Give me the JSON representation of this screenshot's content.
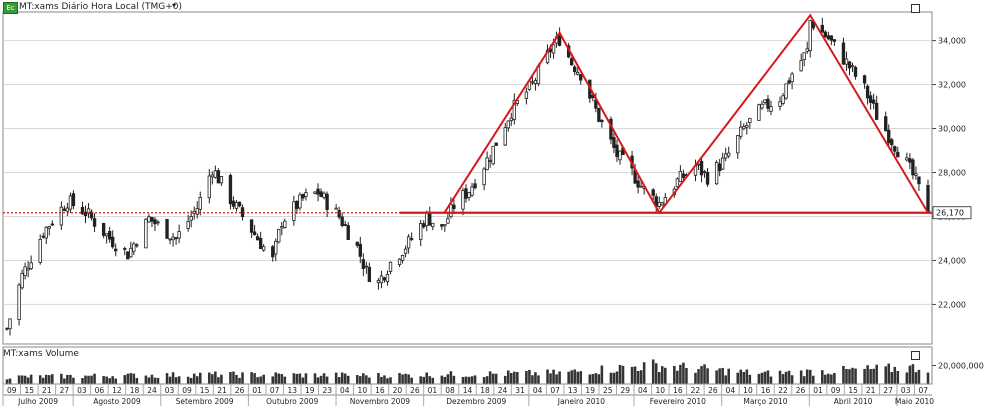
{
  "header": {
    "badge": "Ec",
    "title": "MT:xams Diário Hora Local (TMG+0)",
    "dropdown_icon": "chevron-down-icon",
    "volume_title": "MT:xams Volume"
  },
  "colors": {
    "up_candle": "#ffffff",
    "down_candle": "#222222",
    "pattern_lines": "#d41a1a",
    "neckline": "#d41a1a",
    "volume_bar": "#333333",
    "grid": "#d8d8d8"
  },
  "chart_data": [
    {
      "type": "candlestick",
      "title": "MT:xams Diário Hora Local (TMG+0)",
      "ylim": [
        20200,
        35300
      ],
      "y_ticks": [
        "22,000",
        "24,000",
        "26,000",
        "28,000",
        "30,000",
        "32,000",
        "34,000"
      ],
      "y_tick_values": [
        22000,
        24000,
        26000,
        28000,
        30000,
        32000,
        34000
      ],
      "last_price_label": "26,170",
      "last_price": 26170,
      "x_period": [
        "2009-07-09",
        "2010-05-10"
      ],
      "close_path": [
        {
          "date": "2009-07-09",
          "close": 20900
        },
        {
          "date": "2009-07-14",
          "close": 23300
        },
        {
          "date": "2009-07-21",
          "close": 25300
        },
        {
          "date": "2009-07-29",
          "close": 26700
        },
        {
          "date": "2009-08-04",
          "close": 26200
        },
        {
          "date": "2009-08-12",
          "close": 25000
        },
        {
          "date": "2009-08-18",
          "close": 24300
        },
        {
          "date": "2009-08-25",
          "close": 25900
        },
        {
          "date": "2009-09-03",
          "close": 25000
        },
        {
          "date": "2009-09-10",
          "close": 26400
        },
        {
          "date": "2009-09-15",
          "close": 28200
        },
        {
          "date": "2009-09-21",
          "close": 26800
        },
        {
          "date": "2009-09-25",
          "close": 26000
        },
        {
          "date": "2009-10-01",
          "close": 24800
        },
        {
          "date": "2009-10-05",
          "close": 24000
        },
        {
          "date": "2009-10-08",
          "close": 25800
        },
        {
          "date": "2009-10-15",
          "close": 26800
        },
        {
          "date": "2009-10-20",
          "close": 27100
        },
        {
          "date": "2009-10-27",
          "close": 26000
        },
        {
          "date": "2009-11-02",
          "close": 24600
        },
        {
          "date": "2009-11-05",
          "close": 23500
        },
        {
          "date": "2009-11-09",
          "close": 23000
        },
        {
          "date": "2009-11-13",
          "close": 23900
        },
        {
          "date": "2009-11-19",
          "close": 24800
        },
        {
          "date": "2009-11-25",
          "close": 26000
        },
        {
          "date": "2009-11-30",
          "close": 25400
        },
        {
          "date": "2009-12-04",
          "close": 26500
        },
        {
          "date": "2009-12-09",
          "close": 27200
        },
        {
          "date": "2009-12-16",
          "close": 28800
        },
        {
          "date": "2009-12-23",
          "close": 30800
        },
        {
          "date": "2009-12-30",
          "close": 32000
        },
        {
          "date": "2010-01-05",
          "close": 33600
        },
        {
          "date": "2010-01-08",
          "close": 34100
        },
        {
          "date": "2010-01-12",
          "close": 33000
        },
        {
          "date": "2010-01-15",
          "close": 32500
        },
        {
          "date": "2010-01-21",
          "close": 30500
        },
        {
          "date": "2010-01-27",
          "close": 28800
        },
        {
          "date": "2010-02-01",
          "close": 28000
        },
        {
          "date": "2010-02-05",
          "close": 27200
        },
        {
          "date": "2010-02-10",
          "close": 26600
        },
        {
          "date": "2010-02-16",
          "close": 27600
        },
        {
          "date": "2010-02-22",
          "close": 28300
        },
        {
          "date": "2010-02-26",
          "close": 27800
        },
        {
          "date": "2010-03-04",
          "close": 28600
        },
        {
          "date": "2010-03-10",
          "close": 30000
        },
        {
          "date": "2010-03-16",
          "close": 30900
        },
        {
          "date": "2010-03-22",
          "close": 31400
        },
        {
          "date": "2010-03-26",
          "close": 32500
        },
        {
          "date": "2010-03-31",
          "close": 33500
        },
        {
          "date": "2010-04-01",
          "close": 34900
        },
        {
          "date": "2010-04-07",
          "close": 34100
        },
        {
          "date": "2010-04-13",
          "close": 33000
        },
        {
          "date": "2010-04-19",
          "close": 31800
        },
        {
          "date": "2010-04-23",
          "close": 30600
        },
        {
          "date": "2010-04-27",
          "close": 29700
        },
        {
          "date": "2010-05-03",
          "close": 28400
        },
        {
          "date": "2010-05-06",
          "close": 27600
        },
        {
          "date": "2010-05-10",
          "close": 26170
        }
      ]
    },
    {
      "type": "bar",
      "title": "MT:xams Volume",
      "y_ticks": [
        "20,000,000"
      ],
      "y_tick_values": [
        20000000
      ],
      "ylim": [
        0,
        26000000
      ],
      "level": [
        {
          "date": "2009-07-09",
          "volume": 9000000
        },
        {
          "date": "2009-09-15",
          "volume": 12000000
        },
        {
          "date": "2009-11-09",
          "volume": 11000000
        },
        {
          "date": "2010-01-08",
          "volume": 14000000
        },
        {
          "date": "2010-02-08",
          "volume": 24000000
        },
        {
          "date": "2010-03-16",
          "volume": 13000000
        },
        {
          "date": "2010-05-07",
          "volume": 21000000
        }
      ]
    }
  ],
  "annotations": {
    "neckline_value": 26170,
    "pattern": [
      {
        "date": "2009-12-01",
        "value": 26200
      },
      {
        "date": "2010-01-08",
        "value": 34350
      },
      {
        "date": "2010-02-10",
        "value": 26170
      },
      {
        "date": "2010-04-01",
        "value": 35150
      },
      {
        "date": "2010-05-10",
        "value": 26170
      }
    ]
  },
  "x_axis": {
    "day_labels": [
      "09",
      "15",
      "21",
      "27",
      "03",
      "06",
      "12",
      "18",
      "24",
      "03",
      "09",
      "15",
      "21",
      "26",
      "01",
      "07",
      "13",
      "19",
      "23",
      "04",
      "10",
      "16",
      "20",
      "26",
      "01",
      "08",
      "14",
      "18",
      "24",
      "31",
      "04",
      "07",
      "13",
      "19",
      "25",
      "29",
      "04",
      "10",
      "16",
      "22",
      "26",
      "04",
      "10",
      "16",
      "22",
      "26",
      "01",
      "09",
      "15",
      "21",
      "27",
      "03",
      "07"
    ],
    "month_labels": [
      "Julho 2009",
      "Agosto 2009",
      "Setembro 2009",
      "Outubro 2009",
      "Novembro 2009",
      "Dezembro 2009",
      "Janeiro 2010",
      "Fevereiro 2010",
      "Março 2010",
      "Abril 2010",
      "Maio 2010"
    ]
  }
}
